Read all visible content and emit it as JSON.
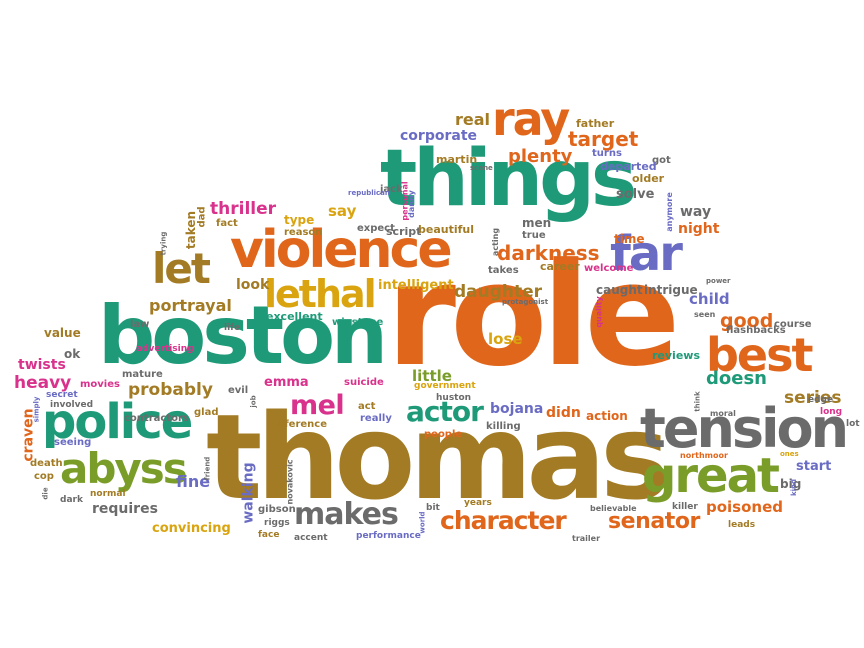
{
  "words": [
    {
      "text": "role",
      "color": "#e0661c"
    },
    {
      "text": "thomas",
      "color": "#a27b24"
    },
    {
      "text": "things",
      "color": "#1e9a79"
    },
    {
      "text": "boston",
      "color": "#1e9a79"
    },
    {
      "text": "violence",
      "color": "#e0661c"
    },
    {
      "text": "tension",
      "color": "#6b6b6b"
    },
    {
      "text": "police",
      "color": "#1e9a79"
    },
    {
      "text": "abyss",
      "color": "#7a9d2a"
    },
    {
      "text": "great",
      "color": "#7a9d2a"
    },
    {
      "text": "best",
      "color": "#e0661c"
    },
    {
      "text": "ray",
      "color": "#e0661c"
    },
    {
      "text": "far",
      "color": "#6a6cc4"
    },
    {
      "text": "let",
      "color": "#a27b24"
    },
    {
      "text": "lethal",
      "color": "#d9a40f"
    },
    {
      "text": "makes",
      "color": "#6b6b6b"
    },
    {
      "text": "character",
      "color": "#e0661c"
    },
    {
      "text": "mel",
      "color": "#d9328c"
    },
    {
      "text": "actor",
      "color": "#1e9a79"
    },
    {
      "text": "senator",
      "color": "#e0661c"
    },
    {
      "text": "darkness",
      "color": "#e0661c"
    },
    {
      "text": "plenty",
      "color": "#e0661c"
    },
    {
      "text": "target",
      "color": "#e0661c"
    },
    {
      "text": "real",
      "color": "#a27b24"
    },
    {
      "text": "corporate",
      "color": "#6a6cc4"
    },
    {
      "text": "thriller",
      "color": "#d9328c"
    },
    {
      "text": "say",
      "color": "#d9a40f"
    },
    {
      "text": "way",
      "color": "#6b6b6b"
    },
    {
      "text": "night",
      "color": "#e0661c"
    },
    {
      "text": "portrayal",
      "color": "#a27b24"
    },
    {
      "text": "look",
      "color": "#a27b24"
    },
    {
      "text": "daughter",
      "color": "#a27b24"
    },
    {
      "text": "intelligent",
      "color": "#d9a40f"
    },
    {
      "text": "caught",
      "color": "#6b6b6b"
    },
    {
      "text": "intrigue",
      "color": "#6b6b6b"
    },
    {
      "text": "child",
      "color": "#6a6cc4"
    },
    {
      "text": "good",
      "color": "#e0661c"
    },
    {
      "text": "course",
      "color": "#6b6b6b"
    },
    {
      "text": "doesn",
      "color": "#1e9a79"
    },
    {
      "text": "series",
      "color": "#a27b24"
    },
    {
      "text": "lose",
      "color": "#d9a40f"
    },
    {
      "text": "little",
      "color": "#7a9d2a"
    },
    {
      "text": "bojana",
      "color": "#6a6cc4"
    },
    {
      "text": "didn",
      "color": "#e0661c"
    },
    {
      "text": "action",
      "color": "#e0661c"
    },
    {
      "text": "probably",
      "color": "#a27b24"
    },
    {
      "text": "emma",
      "color": "#d9328c"
    },
    {
      "text": "heavy",
      "color": "#d9328c"
    },
    {
      "text": "twists",
      "color": "#d9328c"
    },
    {
      "text": "value",
      "color": "#a27b24"
    },
    {
      "text": "ok",
      "color": "#6b6b6b"
    },
    {
      "text": "craven",
      "color": "#e0661c"
    },
    {
      "text": "fine",
      "color": "#6a6cc4"
    },
    {
      "text": "requires",
      "color": "#6b6b6b"
    },
    {
      "text": "convincing",
      "color": "#d9a40f"
    },
    {
      "text": "walking",
      "color": "#6a6cc4"
    },
    {
      "text": "poisoned",
      "color": "#e0661c"
    },
    {
      "text": "start",
      "color": "#6a6cc4"
    },
    {
      "text": "big",
      "color": "#6b6b6b"
    },
    {
      "text": "flashbacks",
      "color": "#6b6b6b"
    },
    {
      "text": "reviews",
      "color": "#1e9a79"
    },
    {
      "text": "excellent",
      "color": "#1e9a79"
    },
    {
      "text": "winstone",
      "color": "#1e9a79"
    },
    {
      "text": "career",
      "color": "#a27b24"
    },
    {
      "text": "welcome",
      "color": "#d9328c"
    },
    {
      "text": "time",
      "color": "#e0661c"
    },
    {
      "text": "solve",
      "color": "#6b6b6b"
    },
    {
      "text": "older",
      "color": "#a27b24"
    },
    {
      "text": "got",
      "color": "#6b6b6b"
    },
    {
      "text": "father",
      "color": "#a27b24"
    },
    {
      "text": "departed",
      "color": "#6a6cc4"
    },
    {
      "text": "turns",
      "color": "#6a6cc4"
    },
    {
      "text": "martin",
      "color": "#a27b24"
    },
    {
      "text": "men",
      "color": "#6b6b6b"
    },
    {
      "text": "true",
      "color": "#6b6b6b"
    },
    {
      "text": "takes",
      "color": "#6b6b6b"
    },
    {
      "text": "jack",
      "color": "#6b6b6b"
    },
    {
      "text": "expect",
      "color": "#6b6b6b"
    },
    {
      "text": "script",
      "color": "#6b6b6b"
    },
    {
      "text": "beautiful",
      "color": "#a27b24"
    },
    {
      "text": "reason",
      "color": "#a27b24"
    },
    {
      "text": "fact",
      "color": "#a27b24"
    },
    {
      "text": "type",
      "color": "#d9a40f"
    },
    {
      "text": "dad",
      "color": "#a27b24"
    },
    {
      "text": "taken",
      "color": "#a27b24"
    },
    {
      "text": "law",
      "color": "#6b6b6b"
    },
    {
      "text": "life",
      "color": "#6b6b6b"
    },
    {
      "text": "advertising",
      "color": "#d9328c"
    },
    {
      "text": "mature",
      "color": "#6b6b6b"
    },
    {
      "text": "movies",
      "color": "#d9328c"
    },
    {
      "text": "secret",
      "color": "#6a6cc4"
    },
    {
      "text": "involved",
      "color": "#6b6b6b"
    },
    {
      "text": "contractors",
      "color": "#6b6b6b"
    },
    {
      "text": "evil",
      "color": "#6b6b6b"
    },
    {
      "text": "glad",
      "color": "#a27b24"
    },
    {
      "text": "seeing",
      "color": "#6a6cc4"
    },
    {
      "text": "difference",
      "color": "#a27b24"
    },
    {
      "text": "act",
      "color": "#a27b24"
    },
    {
      "text": "really",
      "color": "#6a6cc4"
    },
    {
      "text": "suicide",
      "color": "#d9328c"
    },
    {
      "text": "government",
      "color": "#d9a40f"
    },
    {
      "text": "huston",
      "color": "#6b6b6b"
    },
    {
      "text": "people",
      "color": "#e0661c"
    },
    {
      "text": "killing",
      "color": "#6b6b6b"
    },
    {
      "text": "death",
      "color": "#a27b24"
    },
    {
      "text": "cop",
      "color": "#a27b24"
    },
    {
      "text": "dark",
      "color": "#6b6b6b"
    },
    {
      "text": "normal",
      "color": "#a27b24"
    },
    {
      "text": "gibson",
      "color": "#6b6b6b"
    },
    {
      "text": "riggs",
      "color": "#6b6b6b"
    },
    {
      "text": "face",
      "color": "#a27b24"
    },
    {
      "text": "accent",
      "color": "#6b6b6b"
    },
    {
      "text": "performance",
      "color": "#6a6cc4"
    },
    {
      "text": "years",
      "color": "#a27b24"
    },
    {
      "text": "bit",
      "color": "#6b6b6b"
    },
    {
      "text": "believable",
      "color": "#6b6b6b"
    },
    {
      "text": "trailer",
      "color": "#6b6b6b"
    },
    {
      "text": "killer",
      "color": "#6b6b6b"
    },
    {
      "text": "leads",
      "color": "#a27b24"
    },
    {
      "text": "edge",
      "color": "#6b6b6b"
    },
    {
      "text": "long",
      "color": "#d9328c"
    },
    {
      "text": "lot",
      "color": "#6b6b6b"
    },
    {
      "text": "northmoor",
      "color": "#e0661c"
    },
    {
      "text": "moral",
      "color": "#6b6b6b"
    },
    {
      "text": "seen",
      "color": "#6b6b6b"
    },
    {
      "text": "power",
      "color": "#6b6b6b"
    },
    {
      "text": "protagonist",
      "color": "#6b6b6b"
    },
    {
      "text": "acting",
      "color": "#6b6b6b"
    },
    {
      "text": "personal",
      "color": "#d9328c"
    },
    {
      "text": "danny",
      "color": "#6a6cc4"
    },
    {
      "text": "republican",
      "color": "#6a6cc4"
    },
    {
      "text": "scene",
      "color": "#6b6b6b"
    },
    {
      "text": "anymore",
      "color": "#6a6cc4"
    },
    {
      "text": "quality",
      "color": "#d9328c"
    },
    {
      "text": "think",
      "color": "#6b6b6b"
    },
    {
      "text": "novakovic",
      "color": "#6b6b6b"
    },
    {
      "text": "friend",
      "color": "#6b6b6b"
    },
    {
      "text": "job",
      "color": "#6b6b6b"
    },
    {
      "text": "world",
      "color": "#6a6cc4"
    },
    {
      "text": "trying",
      "color": "#6b6b6b"
    },
    {
      "text": "simply",
      "color": "#6a6cc4"
    },
    {
      "text": "die",
      "color": "#6b6b6b"
    },
    {
      "text": "kind",
      "color": "#6a6cc4"
    },
    {
      "text": "ones",
      "color": "#d9a40f"
    }
  ]
}
